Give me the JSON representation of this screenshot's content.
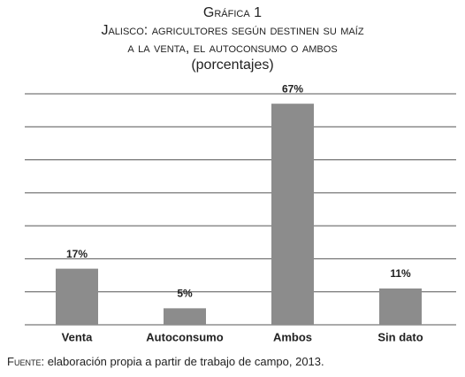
{
  "chart_data": {
    "type": "bar",
    "title": "Gráfica 1",
    "subtitle": [
      "Jalisco: agricultores según destinen su maíz",
      "a la venta, el autoconsumo o ambos",
      "(porcentajes)"
    ],
    "categories": [
      "Venta",
      "Autoconsumo",
      "Ambos",
      "Sin dato"
    ],
    "values": [
      17,
      5,
      67,
      11
    ],
    "value_labels": [
      "17%",
      "5%",
      "67%",
      "11%"
    ],
    "color": "#8c8c8c",
    "ylim": [
      0,
      70
    ],
    "yticks": [
      0,
      10,
      20,
      30,
      40,
      50,
      60,
      70
    ],
    "grid": true,
    "source_label": "Fuente:",
    "source": "elaboración propia a partir de trabajo de campo, 2013."
  }
}
